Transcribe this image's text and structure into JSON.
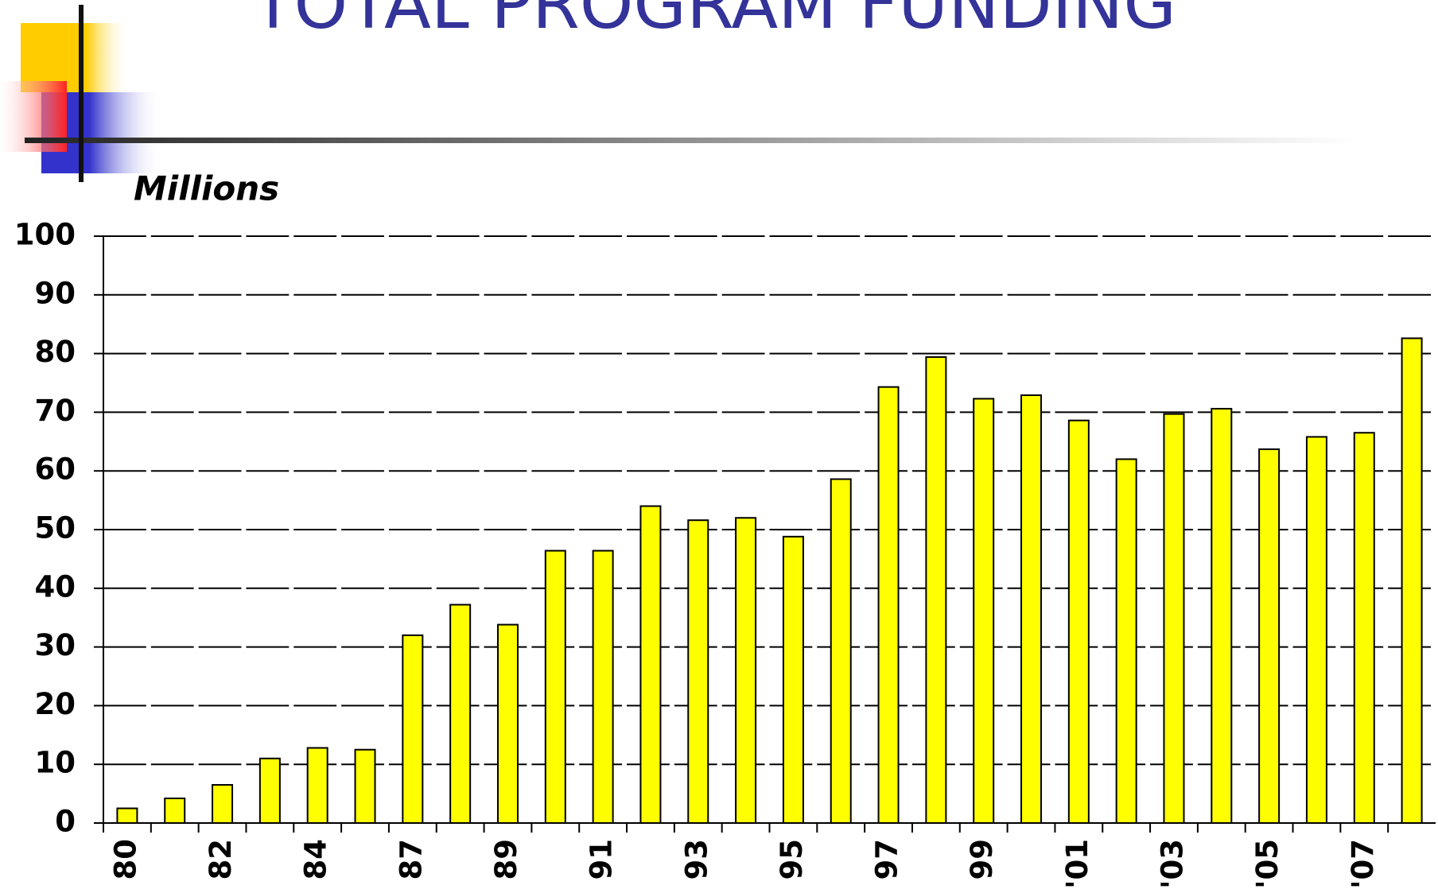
{
  "chart_data": {
    "type": "bar",
    "title": "TOTAL PROGRAM FUNDING",
    "y_label": "Millions",
    "categories": [
      "80",
      null,
      "82",
      null,
      "84",
      null,
      "87",
      null,
      "89",
      null,
      "91",
      null,
      "93",
      null,
      "95",
      null,
      "97",
      null,
      "99",
      null,
      "'01",
      null,
      "'03",
      null,
      "'05",
      null,
      "'07",
      null
    ],
    "values": [
      2.5,
      4.2,
      6.5,
      11,
      12.8,
      12.5,
      32,
      37.2,
      33.8,
      46.4,
      46.4,
      54,
      51.6,
      52,
      48.8,
      58.6,
      74.3,
      79.4,
      72.3,
      72.9,
      68.6,
      62,
      69.7,
      70.6,
      63.7,
      65.8,
      66.5,
      82.6
    ],
    "color": "#ffff00",
    "ylim": [
      0,
      100
    ],
    "yticks": [
      0,
      10,
      20,
      30,
      40,
      50,
      60,
      70,
      80,
      90,
      100
    ],
    "grid": true
  }
}
